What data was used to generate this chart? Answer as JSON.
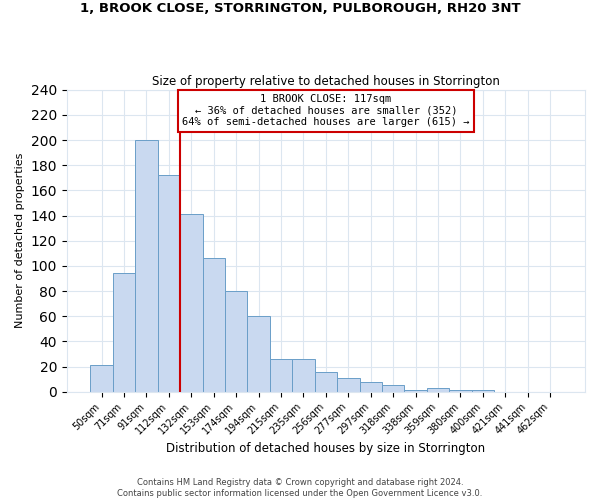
{
  "title": "1, BROOK CLOSE, STORRINGTON, PULBOROUGH, RH20 3NT",
  "subtitle": "Size of property relative to detached houses in Storrington",
  "xlabel": "Distribution of detached houses by size in Storrington",
  "ylabel": "Number of detached properties",
  "bar_labels": [
    "50sqm",
    "71sqm",
    "91sqm",
    "112sqm",
    "132sqm",
    "153sqm",
    "174sqm",
    "194sqm",
    "215sqm",
    "235sqm",
    "256sqm",
    "277sqm",
    "297sqm",
    "318sqm",
    "338sqm",
    "359sqm",
    "380sqm",
    "400sqm",
    "421sqm",
    "441sqm",
    "462sqm"
  ],
  "bar_values": [
    21,
    94,
    200,
    172,
    141,
    106,
    80,
    60,
    26,
    26,
    16,
    11,
    8,
    5,
    1,
    3,
    1,
    1,
    0,
    0,
    0
  ],
  "bar_color": "#c9d9f0",
  "bar_edge_color": "#6a9ec8",
  "vline_x": 3.5,
  "vline_color": "#cc0000",
  "ylim": [
    0,
    240
  ],
  "yticks": [
    0,
    20,
    40,
    60,
    80,
    100,
    120,
    140,
    160,
    180,
    200,
    220,
    240
  ],
  "annotation_title": "1 BROOK CLOSE: 117sqm",
  "annotation_line1": "← 36% of detached houses are smaller (352)",
  "annotation_line2": "64% of semi-detached houses are larger (615) →",
  "annotation_box_color": "#ffffff",
  "annotation_box_edge": "#cc0000",
  "footer1": "Contains HM Land Registry data © Crown copyright and database right 2024.",
  "footer2": "Contains public sector information licensed under the Open Government Licence v3.0.",
  "background_color": "#ffffff",
  "grid_color": "#dce6f0"
}
